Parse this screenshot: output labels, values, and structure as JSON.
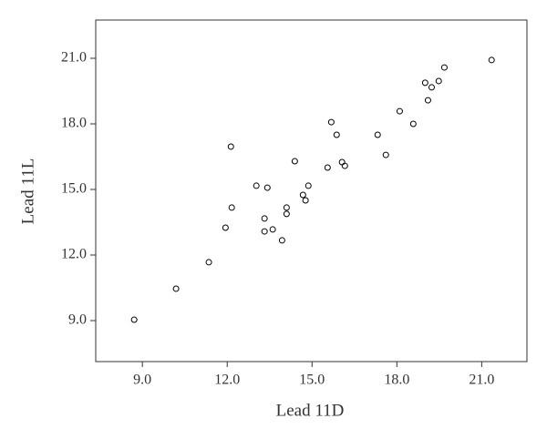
{
  "chart_data": {
    "type": "scatter",
    "x_label": "Lead 11D",
    "y_label": "Lead 11L",
    "color": "#000000",
    "x": [
      8.71,
      10.19,
      11.35,
      11.94,
      12.16,
      12.13,
      13.03,
      13.42,
      13.32,
      13.32,
      13.61,
      13.94,
      14.1,
      14.1,
      14.39,
      14.68,
      14.77,
      14.87,
      15.55,
      15.68,
      15.87,
      16.06,
      16.16,
      17.32,
      17.61,
      18.1,
      18.58,
      19.0,
      19.1,
      19.23,
      19.48,
      19.68,
      21.35
    ],
    "values": [
      9.04,
      10.46,
      11.67,
      13.25,
      14.17,
      16.96,
      15.17,
      15.08,
      13.67,
      13.08,
      13.17,
      12.67,
      14.17,
      13.88,
      16.29,
      14.75,
      14.5,
      15.17,
      16.0,
      18.08,
      17.5,
      16.25,
      16.08,
      17.5,
      16.58,
      18.58,
      18.0,
      19.88,
      19.08,
      19.67,
      19.96,
      20.58,
      20.92
    ],
    "xlim": [
      7.35,
      22.6
    ],
    "ylim": [
      7.125,
      22.75
    ],
    "xticks": [
      {
        "value": 9,
        "label": "9.0"
      },
      {
        "value": 12,
        "label": "12.0"
      },
      {
        "value": 15,
        "label": "15.0"
      },
      {
        "value": 18,
        "label": "18.0"
      },
      {
        "value": 21,
        "label": "21.0"
      }
    ],
    "yticks": [
      {
        "value": 9,
        "label": "9.0"
      },
      {
        "value": 12,
        "label": "12.0"
      },
      {
        "value": 15,
        "label": "15.0"
      },
      {
        "value": 18,
        "label": "18.0"
      },
      {
        "value": 21,
        "label": "21.0"
      }
    ]
  }
}
